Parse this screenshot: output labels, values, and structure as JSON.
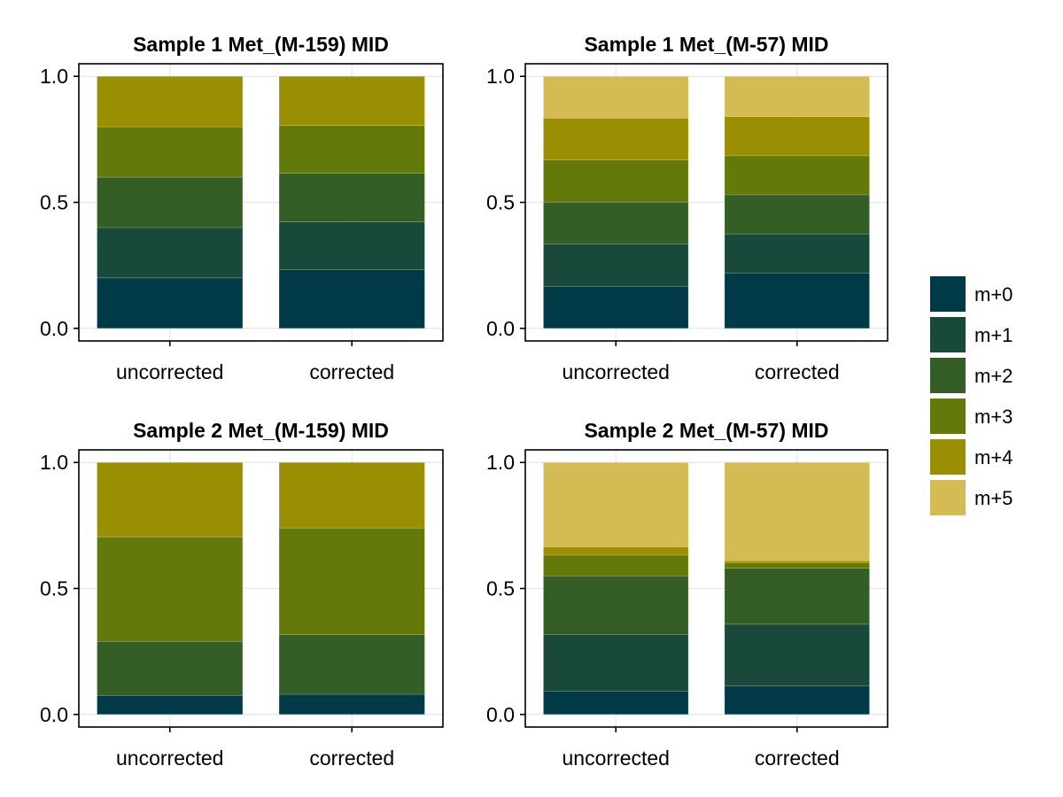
{
  "legend": {
    "items": [
      {
        "label": "m+0",
        "color": "#013a47"
      },
      {
        "label": "m+1",
        "color": "#18493b"
      },
      {
        "label": "m+2",
        "color": "#355d26"
      },
      {
        "label": "m+3",
        "color": "#637a0a"
      },
      {
        "label": "m+4",
        "color": "#9a8e02"
      },
      {
        "label": "m+5",
        "color": "#d4bb53"
      }
    ]
  },
  "chart_data": [
    {
      "type": "bar",
      "stacked": true,
      "title": "Sample 1 Met_(M-159) MID",
      "categories": [
        "uncorrected",
        "corrected"
      ],
      "yticks": [
        "0.0",
        "0.5",
        "1.0"
      ],
      "ylim": [
        -0.05,
        1.05
      ],
      "grid": true,
      "series": [
        {
          "name": "m+0",
          "values": [
            0.2,
            0.232
          ]
        },
        {
          "name": "m+1",
          "values": [
            0.2,
            0.19
          ]
        },
        {
          "name": "m+2",
          "values": [
            0.2,
            0.193
          ]
        },
        {
          "name": "m+3",
          "values": [
            0.2,
            0.19
          ]
        },
        {
          "name": "m+4",
          "values": [
            0.2,
            0.195
          ]
        }
      ]
    },
    {
      "type": "bar",
      "stacked": true,
      "title": "Sample 1 Met_(M-57) MID",
      "categories": [
        "uncorrected",
        "corrected"
      ],
      "yticks": [
        "0.0",
        "0.5",
        "1.0"
      ],
      "ylim": [
        -0.05,
        1.05
      ],
      "grid": true,
      "series": [
        {
          "name": "m+0",
          "values": [
            0.167,
            0.22
          ]
        },
        {
          "name": "m+1",
          "values": [
            0.167,
            0.155
          ]
        },
        {
          "name": "m+2",
          "values": [
            0.167,
            0.155
          ]
        },
        {
          "name": "m+3",
          "values": [
            0.167,
            0.155
          ]
        },
        {
          "name": "m+4",
          "values": [
            0.166,
            0.155
          ]
        },
        {
          "name": "m+5",
          "values": [
            0.166,
            0.16
          ]
        }
      ]
    },
    {
      "type": "bar",
      "stacked": true,
      "title": "Sample 2 Met_(M-159) MID",
      "categories": [
        "uncorrected",
        "corrected"
      ],
      "yticks": [
        "0.0",
        "0.5",
        "1.0"
      ],
      "ylim": [
        -0.05,
        1.05
      ],
      "grid": true,
      "series": [
        {
          "name": "m+0",
          "values": [
            0.075,
            0.08
          ]
        },
        {
          "name": "m+1",
          "values": [
            0.0,
            0.0
          ]
        },
        {
          "name": "m+2",
          "values": [
            0.215,
            0.237
          ]
        },
        {
          "name": "m+3",
          "values": [
            0.415,
            0.423
          ]
        },
        {
          "name": "m+4",
          "values": [
            0.295,
            0.26
          ]
        }
      ]
    },
    {
      "type": "bar",
      "stacked": true,
      "title": "Sample 2 Met_(M-57) MID",
      "categories": [
        "uncorrected",
        "corrected"
      ],
      "yticks": [
        "0.0",
        "0.5",
        "1.0"
      ],
      "ylim": [
        -0.05,
        1.05
      ],
      "grid": true,
      "series": [
        {
          "name": "m+0",
          "values": [
            0.093,
            0.113
          ]
        },
        {
          "name": "m+1",
          "values": [
            0.225,
            0.245
          ]
        },
        {
          "name": "m+2",
          "values": [
            0.232,
            0.222
          ]
        },
        {
          "name": "m+3",
          "values": [
            0.082,
            0.022
          ]
        },
        {
          "name": "m+4",
          "values": [
            0.033,
            0.008
          ]
        },
        {
          "name": "m+5",
          "values": [
            0.335,
            0.39
          ]
        }
      ]
    }
  ]
}
